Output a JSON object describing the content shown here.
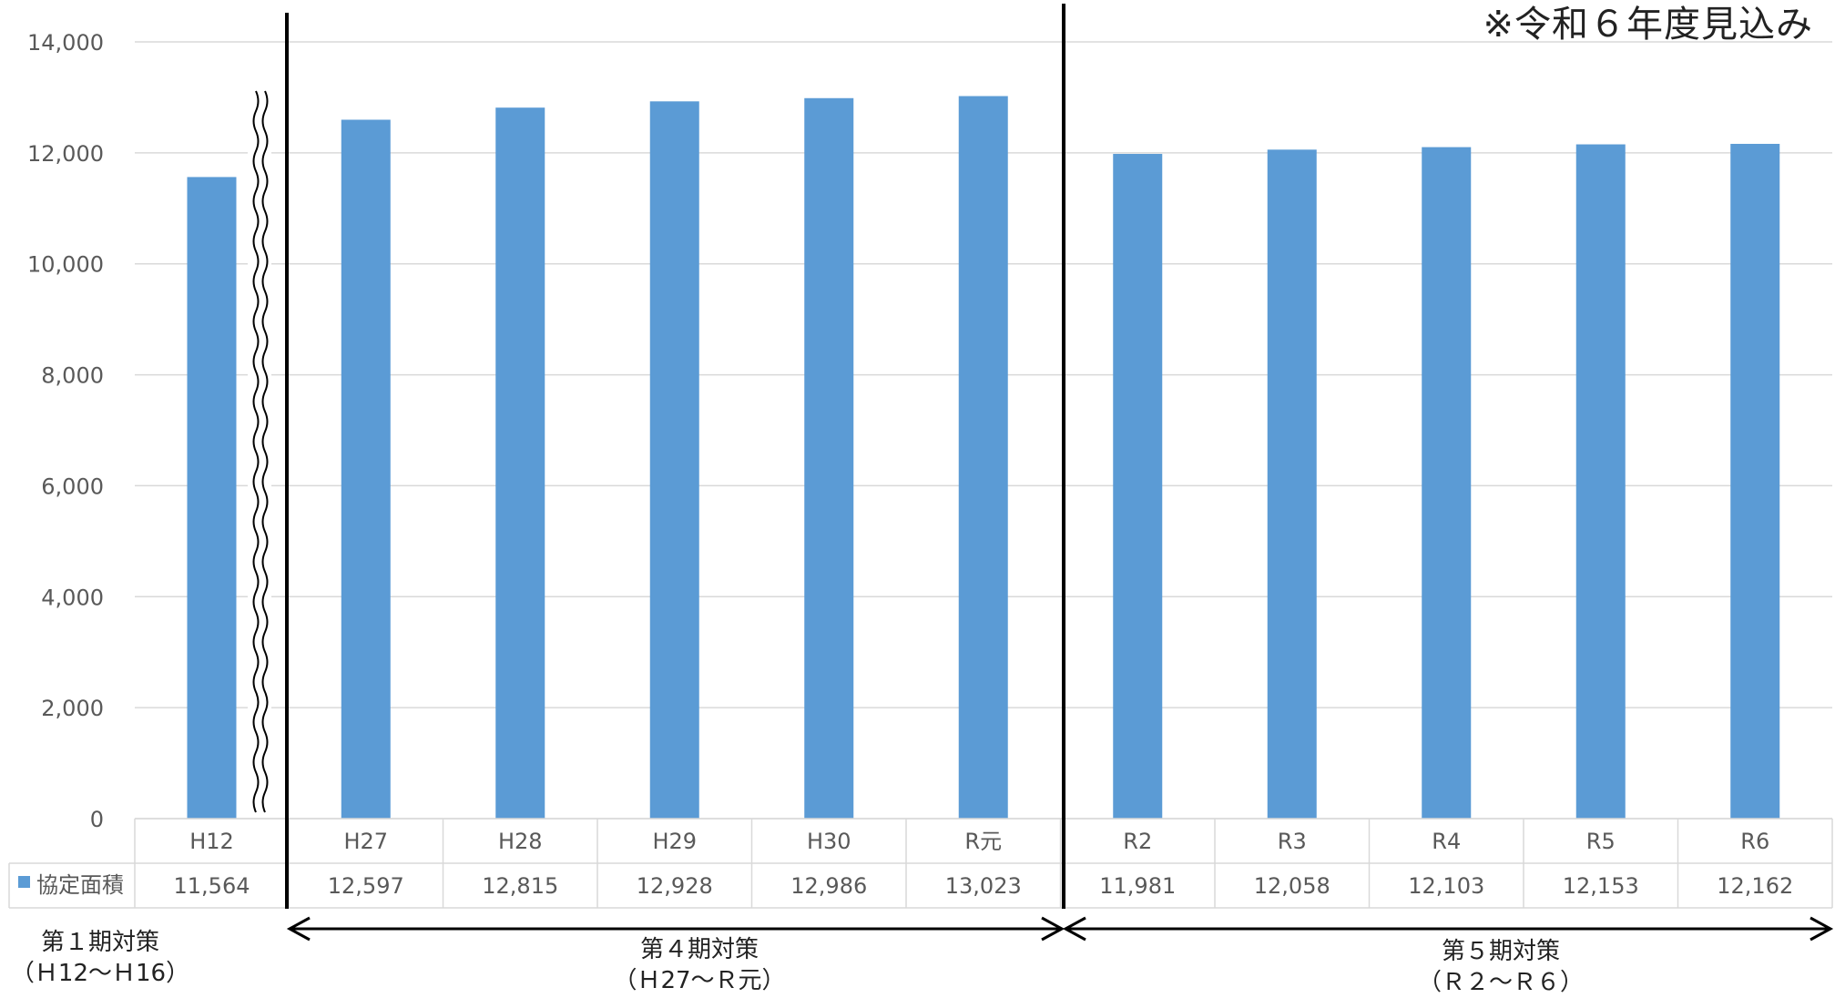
{
  "note": "※令和６年度見込み",
  "legend_label": "協定面積",
  "colors": {
    "bar": "#5B9BD5",
    "grid": "#d9d9d9",
    "axis_text": "#595959",
    "divider": "#000000"
  },
  "periods": [
    {
      "name": "第１期対策",
      "range": "（Ｈ12～Ｈ16）"
    },
    {
      "name": "第４期対策",
      "range": "（Ｈ27～Ｒ元）"
    },
    {
      "name": "第５期対策",
      "range": "（Ｒ２～Ｒ６）"
    }
  ],
  "chart_data": {
    "type": "bar",
    "categories": [
      "H12",
      "H27",
      "H28",
      "H29",
      "H30",
      "R元",
      "R2",
      "R3",
      "R4",
      "R5",
      "R6"
    ],
    "series": [
      {
        "name": "協定面積",
        "values": [
          11564,
          12597,
          12815,
          12928,
          12986,
          13023,
          11981,
          12058,
          12103,
          12153,
          12162
        ]
      }
    ],
    "data_labels": [
      "11,564",
      "12,597",
      "12,815",
      "12,928",
      "12,986",
      "13,023",
      "11,981",
      "12,058",
      "12,103",
      "12,153",
      "12,162"
    ],
    "yticks": [
      "0",
      "2,000",
      "4,000",
      "6,000",
      "8,000",
      "10,000",
      "12,000",
      "14,000"
    ],
    "ylim": [
      0,
      14000
    ],
    "grid": true,
    "legend": "data-table"
  }
}
